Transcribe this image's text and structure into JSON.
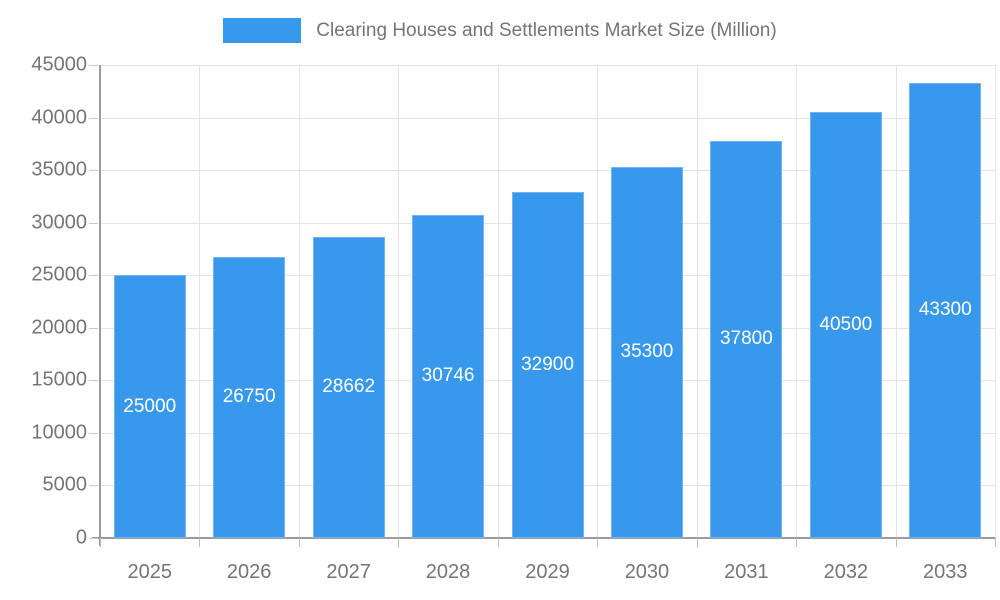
{
  "legend": {
    "label": "Clearing Houses and Settlements Market Size (Million)"
  },
  "chart_data": {
    "type": "bar",
    "title": "Clearing Houses and Settlements Market Size (Million)",
    "categories": [
      "2025",
      "2026",
      "2027",
      "2028",
      "2029",
      "2030",
      "2031",
      "2032",
      "2033"
    ],
    "values": [
      25000,
      26750,
      28662,
      30746,
      32900,
      35300,
      37800,
      40500,
      43300
    ],
    "xlabel": "",
    "ylabel": "",
    "ylim": [
      0,
      45000
    ],
    "ytick_step": 5000,
    "grid": true,
    "legend_position": "top",
    "bar_color": "#3899EC",
    "bar_border_color": "#74B4F0",
    "value_label_color": "#FFFFFF",
    "axis_label_color": "#757575",
    "grid_color": "#E4E4E4",
    "axis_line_color": "#9B9B9B"
  }
}
